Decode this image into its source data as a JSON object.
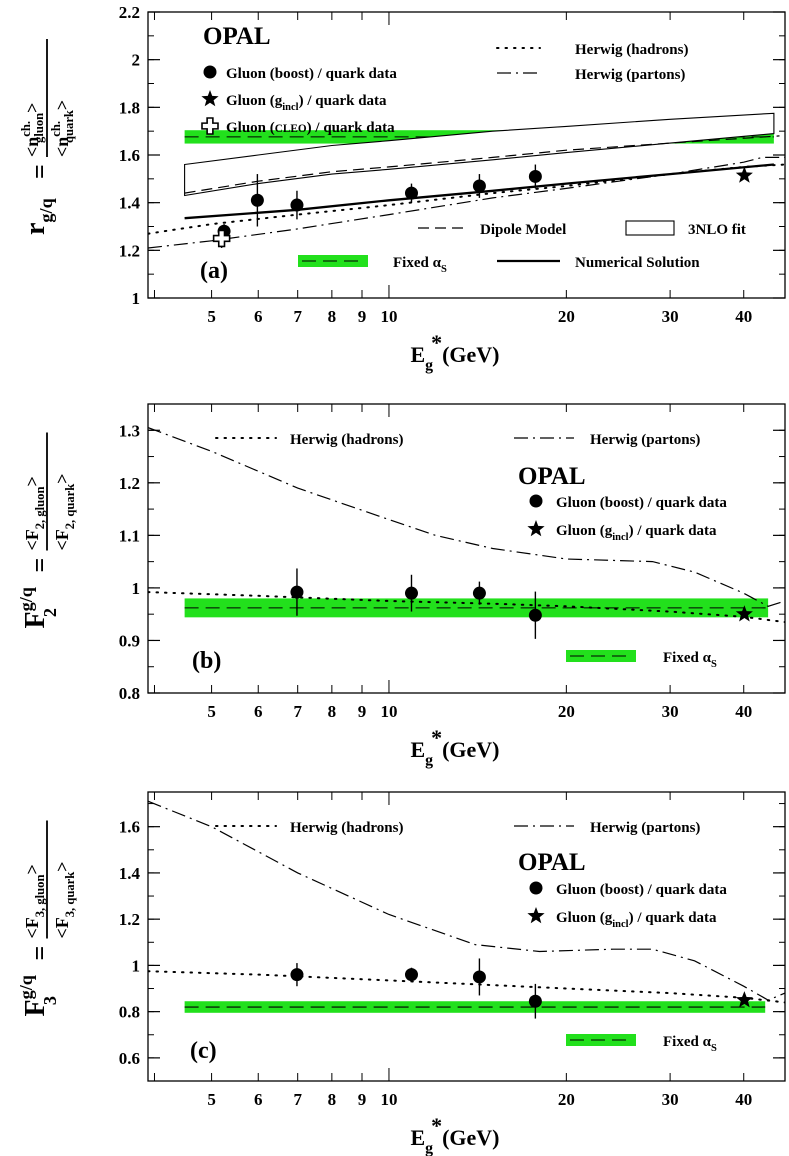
{
  "chart_data": [
    {
      "id": "a",
      "type": "scatter",
      "experiment": "OPAL",
      "panel_label": "(a)",
      "ylabel": "r",
      "ylabel_sub": "g/q",
      "ylabel_num": "<n",
      "ylabel_num_sup": "ch.",
      "ylabel_num_sub": "gluon",
      "ylabel_den": "<n",
      "ylabel_den_sup": "ch.",
      "ylabel_den_sub": "quark",
      "xlabel": "E",
      "xlabel_sub": "g",
      "xlabel_sup": "*",
      "xlabel_unit": "(GeV)",
      "xscale": "log",
      "xlim": [
        3.9,
        47
      ],
      "ylim": [
        1.0,
        2.2
      ],
      "y_ticks": [
        "1",
        "1.2",
        "1.4",
        "1.6",
        "1.8",
        "2",
        "2.2"
      ],
      "x_ticks": [
        "5",
        "6",
        "7",
        "8",
        "9",
        "10",
        "20",
        "30",
        "40"
      ],
      "legend": {
        "boost": "Gluon (boost) / quark data",
        "incl_pre": "Gluon (g",
        "incl_sub": "incl",
        "incl_post": ") / quark data",
        "cleo_pre": "Gluon (",
        "cleo_inner": "CLEO",
        "cleo_post": ") / quark data",
        "herwig_h": "Herwig (hadrons)",
        "herwig_p": "Herwig (partons)",
        "dipole": "Dipole Model",
        "nlo": "3NLO fit",
        "fixed_pre": "Fixed α",
        "fixed_sub": "S",
        "numerical": "Numerical Solution"
      },
      "series": {
        "boost": [
          {
            "x": 5.25,
            "y": 1.28,
            "err": 0.03
          },
          {
            "x": 5.98,
            "y": 1.41,
            "err": 0.11
          },
          {
            "x": 6.98,
            "y": 1.39,
            "err": 0.06
          },
          {
            "x": 10.92,
            "y": 1.44,
            "err": 0.04
          },
          {
            "x": 14.24,
            "y": 1.47,
            "err": 0.05
          },
          {
            "x": 17.72,
            "y": 1.51,
            "err": 0.05
          }
        ],
        "incl": [
          {
            "x": 40.1,
            "y": 1.514,
            "err": 0.01
          }
        ],
        "cleo": [
          {
            "x": 5.2,
            "y": 1.25,
            "err": 0.04
          }
        ],
        "herwig_hadrons": [
          [
            3.9,
            1.27
          ],
          [
            5,
            1.31
          ],
          [
            7,
            1.35
          ],
          [
            10,
            1.39
          ],
          [
            15,
            1.44
          ],
          [
            20,
            1.47
          ],
          [
            30,
            1.52
          ],
          [
            40,
            1.55
          ],
          [
            47,
            1.56
          ]
        ],
        "herwig_partons": [
          [
            3.9,
            1.21
          ],
          [
            5,
            1.24
          ],
          [
            7,
            1.29
          ],
          [
            10,
            1.35
          ],
          [
            15,
            1.42
          ],
          [
            20,
            1.46
          ],
          [
            30,
            1.52
          ],
          [
            40,
            1.57
          ],
          [
            43,
            1.59
          ],
          [
            47,
            1.59
          ]
        ],
        "dipole": [
          [
            4.5,
            1.44
          ],
          [
            6,
            1.49
          ],
          [
            8,
            1.53
          ],
          [
            10,
            1.55
          ],
          [
            15,
            1.59
          ],
          [
            20,
            1.62
          ],
          [
            30,
            1.65
          ],
          [
            46,
            1.68
          ]
        ],
        "nlo_upper": [
          [
            4.5,
            1.56
          ],
          [
            6,
            1.6
          ],
          [
            8,
            1.64
          ],
          [
            10,
            1.66
          ],
          [
            15,
            1.7
          ],
          [
            20,
            1.72
          ],
          [
            30,
            1.75
          ],
          [
            45,
            1.775
          ]
        ],
        "nlo_lower": [
          [
            4.5,
            1.43
          ],
          [
            6,
            1.48
          ],
          [
            8,
            1.52
          ],
          [
            10,
            1.54
          ],
          [
            15,
            1.58
          ],
          [
            20,
            1.61
          ],
          [
            30,
            1.65
          ],
          [
            45,
            1.69
          ]
        ],
        "numerical": [
          [
            4.5,
            1.335
          ],
          [
            7,
            1.37
          ],
          [
            10,
            1.41
          ],
          [
            15,
            1.45
          ],
          [
            20,
            1.48
          ],
          [
            30,
            1.52
          ],
          [
            45,
            1.56
          ]
        ],
        "fixed_band": {
          "xmin": 4.5,
          "xmax": 45,
          "y": 1.676,
          "half_width": 0.028
        }
      }
    },
    {
      "id": "b",
      "type": "scatter",
      "experiment": "OPAL",
      "panel_label": "(b)",
      "ylabel": "F",
      "ylabel_sup": "g/q",
      "ylabel_sub": "2",
      "ylabel_num": "<F",
      "ylabel_num_sub": "2, gluon",
      "ylabel_den": "<F",
      "ylabel_den_sub": "2, quark",
      "xlabel": "E",
      "xlabel_sub": "g",
      "xlabel_sup": "*",
      "xlabel_unit": "(GeV)",
      "xscale": "log",
      "xlim": [
        3.9,
        47
      ],
      "ylim": [
        0.8,
        1.35
      ],
      "y_ticks": [
        "0.8",
        "0.9",
        "1",
        "1.1",
        "1.2",
        "1.3"
      ],
      "x_ticks": [
        "5",
        "6",
        "7",
        "8",
        "9",
        "10",
        "20",
        "30",
        "40"
      ],
      "legend": {
        "herwig_h": "Herwig (hadrons)",
        "herwig_p": "Herwig (partons)",
        "boost": "Gluon (boost) / quark data",
        "incl_pre": "Gluon (g",
        "incl_sub": "incl",
        "incl_post": ") / quark data",
        "fixed_pre": "Fixed α",
        "fixed_sub": "S"
      },
      "series": {
        "boost": [
          {
            "x": 6.98,
            "y": 0.992,
            "err": 0.045
          },
          {
            "x": 10.92,
            "y": 0.99,
            "err": 0.035
          },
          {
            "x": 14.24,
            "y": 0.99,
            "err": 0.022
          },
          {
            "x": 17.72,
            "y": 0.948,
            "err": 0.045
          }
        ],
        "incl": [
          {
            "x": 40.1,
            "y": 0.95,
            "err": 0.005
          }
        ],
        "herwig_hadrons": [
          [
            3.9,
            0.992
          ],
          [
            6,
            0.985
          ],
          [
            10,
            0.975
          ],
          [
            15,
            0.97
          ],
          [
            20,
            0.965
          ],
          [
            30,
            0.955
          ],
          [
            40,
            0.945
          ],
          [
            47,
            0.935
          ]
        ],
        "herwig_partons": [
          [
            3.9,
            1.305
          ],
          [
            5,
            1.26
          ],
          [
            7,
            1.19
          ],
          [
            10,
            1.13
          ],
          [
            12,
            1.1
          ],
          [
            15,
            1.075
          ],
          [
            20,
            1.055
          ],
          [
            28,
            1.05
          ],
          [
            33,
            1.03
          ],
          [
            40,
            0.99
          ],
          [
            44,
            0.965
          ],
          [
            47,
            0.975
          ]
        ],
        "fixed_band": {
          "xmin": 4.5,
          "xmax": 44,
          "y": 0.962,
          "half_width": 0.018
        }
      }
    },
    {
      "id": "c",
      "type": "scatter",
      "experiment": "OPAL",
      "panel_label": "(c)",
      "ylabel": "F",
      "ylabel_sup": "g/q",
      "ylabel_sub": "3",
      "ylabel_num": "<F",
      "ylabel_num_sub": "3, gluon",
      "ylabel_den": "<F",
      "ylabel_den_sub": "3, quark",
      "xlabel": "E",
      "xlabel_sub": "g",
      "xlabel_sup": "*",
      "xlabel_unit": "(GeV)",
      "xscale": "log",
      "xlim": [
        3.9,
        47
      ],
      "ylim": [
        0.5,
        1.75
      ],
      "y_ticks": [
        "0.6",
        "0.8",
        "1",
        "1.2",
        "1.4",
        "1.6"
      ],
      "x_ticks": [
        "5",
        "6",
        "7",
        "8",
        "9",
        "10",
        "20",
        "30",
        "40"
      ],
      "legend": {
        "herwig_h": "Herwig (hadrons)",
        "herwig_p": "Herwig (partons)",
        "boost": "Gluon (boost) / quark data",
        "incl_pre": "Gluon (g",
        "incl_sub": "incl",
        "incl_post": ") / quark data",
        "fixed_pre": "Fixed α",
        "fixed_sub": "S"
      },
      "series": {
        "boost": [
          {
            "x": 6.98,
            "y": 0.96,
            "err": 0.05
          },
          {
            "x": 10.92,
            "y": 0.96,
            "err": 0.03
          },
          {
            "x": 14.24,
            "y": 0.95,
            "err": 0.08
          },
          {
            "x": 17.72,
            "y": 0.845,
            "err": 0.075
          }
        ],
        "incl": [
          {
            "x": 40.1,
            "y": 0.85,
            "err": 0.01
          }
        ],
        "herwig_hadrons": [
          [
            3.9,
            0.975
          ],
          [
            6,
            0.96
          ],
          [
            10,
            0.935
          ],
          [
            15,
            0.915
          ],
          [
            20,
            0.9
          ],
          [
            30,
            0.88
          ],
          [
            40,
            0.86
          ],
          [
            47,
            0.84
          ]
        ],
        "herwig_partons": [
          [
            3.9,
            1.71
          ],
          [
            5,
            1.6
          ],
          [
            7,
            1.4
          ],
          [
            10,
            1.22
          ],
          [
            14,
            1.09
          ],
          [
            18,
            1.06
          ],
          [
            24,
            1.07
          ],
          [
            28,
            1.07
          ],
          [
            33,
            1.02
          ],
          [
            40,
            0.91
          ],
          [
            44,
            0.85
          ],
          [
            47,
            0.88
          ]
        ],
        "fixed_band": {
          "xmin": 4.5,
          "xmax": 43.5,
          "y": 0.82,
          "half_width": 0.025
        }
      }
    }
  ]
}
